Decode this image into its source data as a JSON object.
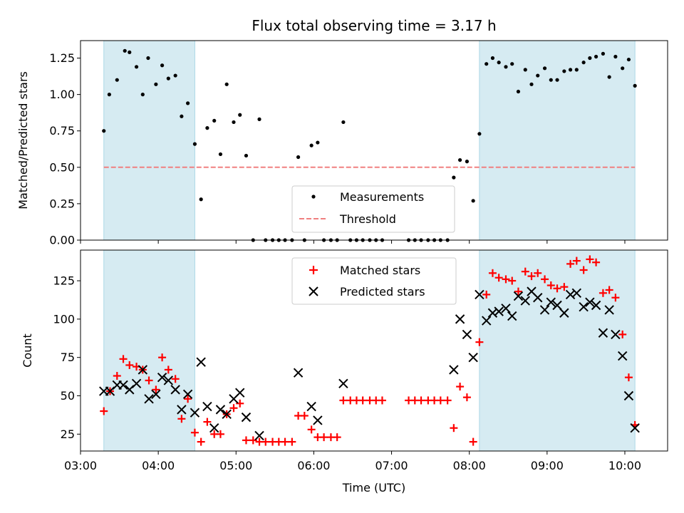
{
  "chart_data": [
    {
      "type": "scatter",
      "title": "Flux total observing time = 3.17 h",
      "ylabel": "Matched/Predicted stars",
      "xlabel": "",
      "x_ticks": [
        "03:00",
        "04:00",
        "05:00",
        "06:00",
        "07:00",
        "08:00",
        "09:00",
        "10:00"
      ],
      "x_range_hours": [
        3.0,
        10.55
      ],
      "ylim": [
        0,
        1.37
      ],
      "y_ticks": [
        "0.00",
        "0.25",
        "0.50",
        "0.75",
        "1.00",
        "1.25"
      ],
      "y_tick_values": [
        0,
        0.25,
        0.5,
        0.75,
        1.0,
        1.25
      ],
      "shaded_intervals_hours": [
        [
          3.3,
          4.47
        ],
        [
          8.13,
          10.13
        ]
      ],
      "shade_color": "#add8e6",
      "legend": {
        "placement": "lower-center",
        "entries": [
          "Measurements",
          "Threshold"
        ]
      },
      "threshold": {
        "name": "Threshold",
        "value": 0.5,
        "color": "#f08080"
      },
      "series": [
        {
          "name": "Measurements",
          "color": "#000000",
          "x": [
            3.3,
            3.37,
            3.47,
            3.57,
            3.63,
            3.72,
            3.8,
            3.87,
            3.97,
            4.05,
            4.13,
            4.22,
            4.3,
            4.38,
            4.47,
            4.55,
            4.63,
            4.72,
            4.8,
            4.88,
            4.97,
            5.05,
            5.13,
            5.22,
            5.3,
            5.38,
            5.47,
            5.55,
            5.63,
            5.72,
            5.8,
            5.88,
            5.97,
            6.05,
            6.13,
            6.22,
            6.3,
            6.38,
            6.47,
            6.55,
            6.63,
            6.72,
            6.8,
            6.88,
            7.22,
            7.3,
            7.38,
            7.47,
            7.55,
            7.63,
            7.72,
            7.8,
            7.88,
            7.97,
            8.05,
            8.13,
            8.22,
            8.3,
            8.38,
            8.47,
            8.55,
            8.63,
            8.72,
            8.8,
            8.88,
            8.97,
            9.05,
            9.13,
            9.22,
            9.3,
            9.38,
            9.47,
            9.55,
            9.63,
            9.72,
            9.8,
            9.88,
            9.97,
            10.05,
            10.13
          ],
          "y": [
            0.75,
            1.0,
            1.1,
            1.3,
            1.29,
            1.19,
            1.0,
            1.25,
            1.07,
            1.2,
            1.11,
            1.13,
            0.85,
            0.94,
            0.66,
            0.28,
            0.77,
            0.82,
            0.59,
            1.07,
            0.81,
            0.86,
            0.58,
            0.0,
            0.83,
            0.0,
            0.0,
            0.0,
            0.0,
            0.0,
            0.57,
            0.0,
            0.65,
            0.67,
            0.0,
            0.0,
            0.0,
            0.81,
            0.0,
            0.0,
            0.0,
            0.0,
            0.0,
            0.0,
            0.0,
            0.0,
            0.0,
            0.0,
            0.0,
            0.0,
            0.0,
            0.43,
            0.55,
            0.54,
            0.27,
            0.73,
            1.21,
            1.25,
            1.22,
            1.19,
            1.21,
            1.02,
            1.17,
            1.07,
            1.13,
            1.18,
            1.1,
            1.1,
            1.16,
            1.17,
            1.17,
            1.22,
            1.25,
            1.26,
            1.28,
            1.12,
            1.26,
            1.18,
            1.24,
            1.06
          ]
        }
      ]
    },
    {
      "type": "scatter",
      "title": "",
      "ylabel": "Count",
      "xlabel": "Time (UTC)",
      "x_ticks": [
        "03:00",
        "04:00",
        "05:00",
        "06:00",
        "07:00",
        "08:00",
        "09:00",
        "10:00"
      ],
      "x_tick_hours": [
        3,
        4,
        5,
        6,
        7,
        8,
        9,
        10
      ],
      "x_range_hours": [
        3.0,
        10.55
      ],
      "ylim": [
        14,
        145
      ],
      "y_ticks": [
        "25",
        "50",
        "75",
        "100",
        "125"
      ],
      "y_tick_values": [
        25,
        50,
        75,
        100,
        125
      ],
      "shaded_intervals_hours": [
        [
          3.3,
          4.47
        ],
        [
          8.13,
          10.13
        ]
      ],
      "shade_color": "#add8e6",
      "legend": {
        "placement": "top-center",
        "entries": [
          "Matched stars",
          "Predicted stars"
        ]
      },
      "series": [
        {
          "name": "Matched stars",
          "marker": "plus",
          "color": "#ff0000",
          "x": [
            3.3,
            3.38,
            3.47,
            3.55,
            3.63,
            3.72,
            3.8,
            3.88,
            3.97,
            4.05,
            4.13,
            4.22,
            4.3,
            4.38,
            4.47,
            4.55,
            4.63,
            4.72,
            4.8,
            4.88,
            4.97,
            5.05,
            5.13,
            5.22,
            5.3,
            5.38,
            5.47,
            5.55,
            5.63,
            5.72,
            5.8,
            5.88,
            5.97,
            6.05,
            6.13,
            6.22,
            6.3,
            6.38,
            6.47,
            6.55,
            6.63,
            6.72,
            6.8,
            6.88,
            7.22,
            7.3,
            7.38,
            7.47,
            7.55,
            7.63,
            7.72,
            7.8,
            7.88,
            7.97,
            8.05,
            8.13,
            8.22,
            8.3,
            8.38,
            8.47,
            8.55,
            8.63,
            8.72,
            8.8,
            8.88,
            8.97,
            9.05,
            9.13,
            9.22,
            9.3,
            9.38,
            9.47,
            9.55,
            9.63,
            9.72,
            9.8,
            9.88,
            9.97,
            10.05,
            10.13
          ],
          "y": [
            40,
            53,
            63,
            74,
            70,
            69,
            67,
            60,
            54,
            75,
            67,
            61,
            35,
            48,
            26,
            20,
            33,
            25,
            25,
            38,
            42,
            45,
            21,
            21,
            20,
            20,
            20,
            20,
            20,
            20,
            37,
            37,
            28,
            23,
            23,
            23,
            23,
            47,
            47,
            47,
            47,
            47,
            47,
            47,
            47,
            47,
            47,
            47,
            47,
            47,
            47,
            29,
            56,
            49,
            20,
            85,
            116,
            130,
            127,
            126,
            125,
            118,
            131,
            128,
            130,
            126,
            122,
            120,
            121,
            136,
            138,
            132,
            139,
            137,
            117,
            119,
            114,
            90,
            62,
            31
          ]
        },
        {
          "name": "Predicted stars",
          "marker": "x",
          "color": "#000000",
          "x": [
            3.3,
            3.38,
            3.47,
            3.55,
            3.63,
            3.72,
            3.8,
            3.88,
            3.97,
            4.05,
            4.13,
            4.22,
            4.3,
            4.38,
            4.47,
            4.55,
            4.63,
            4.72,
            4.8,
            4.88,
            4.97,
            5.05,
            5.13,
            5.3,
            5.8,
            5.97,
            6.05,
            6.38,
            7.8,
            7.88,
            7.97,
            8.05,
            8.13,
            8.22,
            8.3,
            8.38,
            8.47,
            8.55,
            8.63,
            8.72,
            8.8,
            8.88,
            8.97,
            9.05,
            9.13,
            9.22,
            9.3,
            9.38,
            9.47,
            9.55,
            9.63,
            9.72,
            9.8,
            9.88,
            9.97,
            10.05,
            10.13
          ],
          "y": [
            53,
            53,
            57,
            57,
            54,
            58,
            67,
            48,
            51,
            62,
            60,
            54,
            41,
            51,
            39,
            72,
            43,
            29,
            41,
            38,
            48,
            52,
            36,
            24,
            65,
            43,
            34,
            58,
            67,
            100,
            90,
            75,
            116,
            99,
            104,
            105,
            107,
            102,
            115,
            112,
            118,
            114,
            106,
            111,
            109,
            104,
            116,
            117,
            108,
            111,
            109,
            91,
            106,
            90,
            76,
            50,
            29
          ]
        }
      ]
    }
  ]
}
